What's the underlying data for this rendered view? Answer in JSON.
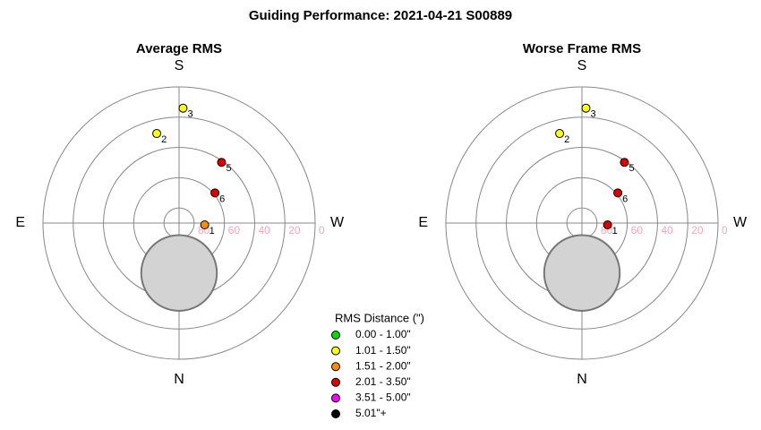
{
  "title": "Guiding Performance: 2021-04-21 S00889",
  "chart_data": [
    {
      "type": "polar",
      "title": "Average RMS",
      "directions": {
        "top": "S",
        "right": "W",
        "bottom": "N",
        "left": "E"
      },
      "rlim": [
        90,
        0
      ],
      "rticks": [
        80,
        60,
        40,
        20,
        0
      ],
      "exclusion": {
        "alt": 57,
        "az": 0,
        "radius": 25
      },
      "points": [
        {
          "label": "1",
          "alt": 73,
          "az": 274,
          "color": "#ff8c00"
        },
        {
          "label": "2",
          "alt": 29,
          "az": 166,
          "color": "#ffff00"
        },
        {
          "label": "3",
          "alt": 14,
          "az": 182,
          "color": "#ffff00"
        },
        {
          "label": "5",
          "alt": 41,
          "az": 215,
          "color": "#e00000"
        },
        {
          "label": "6",
          "alt": 59,
          "az": 230,
          "color": "#e00000"
        }
      ]
    },
    {
      "type": "polar",
      "title": "Worse Frame RMS",
      "directions": {
        "top": "S",
        "right": "W",
        "bottom": "N",
        "left": "E"
      },
      "rlim": [
        90,
        0
      ],
      "rticks": [
        80,
        60,
        40,
        20,
        0
      ],
      "exclusion": {
        "alt": 57,
        "az": 0,
        "radius": 25
      },
      "points": [
        {
          "label": "1",
          "alt": 73,
          "az": 274,
          "color": "#e00000"
        },
        {
          "label": "2",
          "alt": 29,
          "az": 166,
          "color": "#ffff00"
        },
        {
          "label": "3",
          "alt": 14,
          "az": 182,
          "color": "#ffff00"
        },
        {
          "label": "5",
          "alt": 41,
          "az": 215,
          "color": "#e00000"
        },
        {
          "label": "6",
          "alt": 59,
          "az": 230,
          "color": "#e00000"
        }
      ]
    }
  ],
  "legend": {
    "title": "RMS Distance (\")",
    "entries": [
      {
        "label": "0.00 - 1.00\"",
        "color": "#00dd00"
      },
      {
        "label": "1.01 - 1.50\"",
        "color": "#ffff00"
      },
      {
        "label": "1.51 - 2.00\"",
        "color": "#ff8c00"
      },
      {
        "label": "2.01 - 3.50\"",
        "color": "#e00000"
      },
      {
        "label": "3.51 - 5.00\"",
        "color": "#ff00ff"
      },
      {
        "label": "5.01\"+",
        "color": "#000000"
      }
    ]
  }
}
